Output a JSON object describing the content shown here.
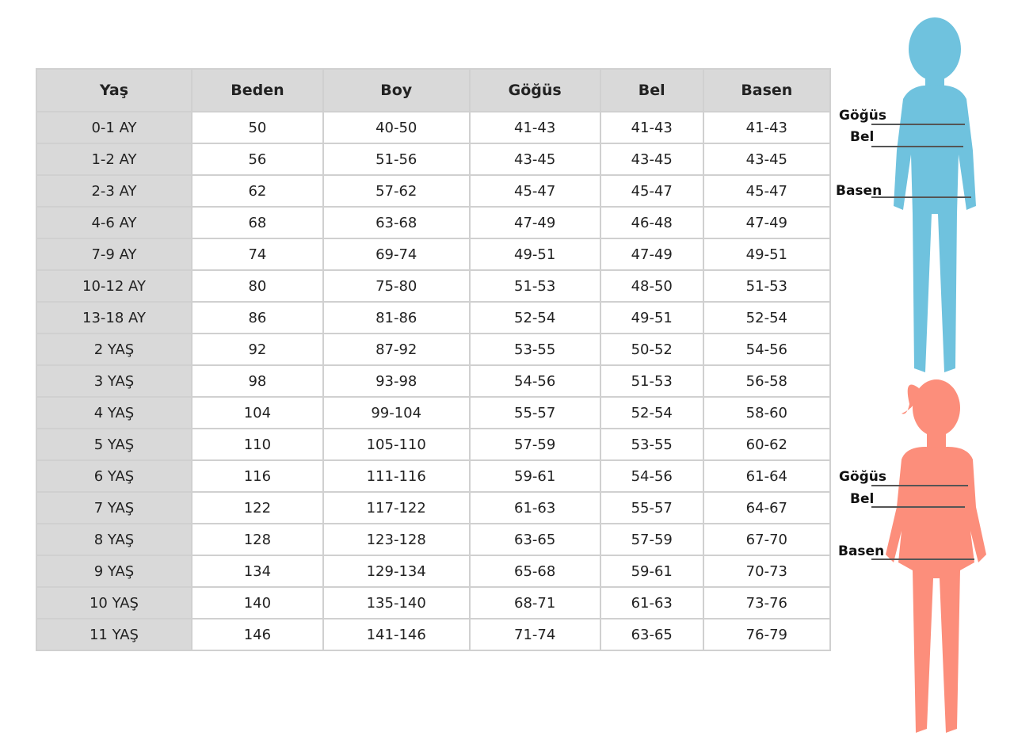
{
  "headers": [
    "Yaş",
    "Beden",
    "Boy",
    "Göğüs",
    "Bel",
    "Basen"
  ],
  "rows": [
    [
      "0-1 AY",
      "50",
      "40-50",
      "41-43",
      "41-43",
      "41-43"
    ],
    [
      "1-2 AY",
      "56",
      "51-56",
      "43-45",
      "43-45",
      "43-45"
    ],
    [
      "2-3 AY",
      "62",
      "57-62",
      "45-47",
      "45-47",
      "45-47"
    ],
    [
      "4-6 AY",
      "68",
      "63-68",
      "47-49",
      "46-48",
      "47-49"
    ],
    [
      "7-9 AY",
      "74",
      "69-74",
      "49-51",
      "47-49",
      "49-51"
    ],
    [
      "10-12 AY",
      "80",
      "75-80",
      "51-53",
      "48-50",
      "51-53"
    ],
    [
      "13-18 AY",
      "86",
      "81-86",
      "52-54",
      "49-51",
      "52-54"
    ],
    [
      "2 YAŞ",
      "92",
      "87-92",
      "53-55",
      "50-52",
      "54-56"
    ],
    [
      "3 YAŞ",
      "98",
      "93-98",
      "54-56",
      "51-53",
      "56-58"
    ],
    [
      "4 YAŞ",
      "104",
      "99-104",
      "55-57",
      "52-54",
      "58-60"
    ],
    [
      "5 YAŞ",
      "110",
      "105-110",
      "57-59",
      "53-55",
      "60-62"
    ],
    [
      "6 YAŞ",
      "116",
      "111-116",
      "59-61",
      "54-56",
      "61-64"
    ],
    [
      "7 YAŞ",
      "122",
      "117-122",
      "61-63",
      "55-57",
      "64-67"
    ],
    [
      "8 YAŞ",
      "128",
      "123-128",
      "63-65",
      "57-59",
      "67-70"
    ],
    [
      "9 YAŞ",
      "134",
      "129-134",
      "65-68",
      "59-61",
      "70-73"
    ],
    [
      "10 YAŞ",
      "140",
      "135-140",
      "68-71",
      "61-63",
      "73-76"
    ],
    [
      "11 YAŞ",
      "146",
      "141-146",
      "71-74",
      "63-65",
      "76-79"
    ]
  ],
  "figures": {
    "boy": {
      "color": "#6fc2de",
      "labels": {
        "chest": "Göğüs",
        "waist": "Bel",
        "hip": "Basen"
      }
    },
    "girl": {
      "color": "#fc8e7b",
      "labels": {
        "chest": "Göğüs",
        "waist": "Bel",
        "hip": "Basen"
      }
    }
  }
}
